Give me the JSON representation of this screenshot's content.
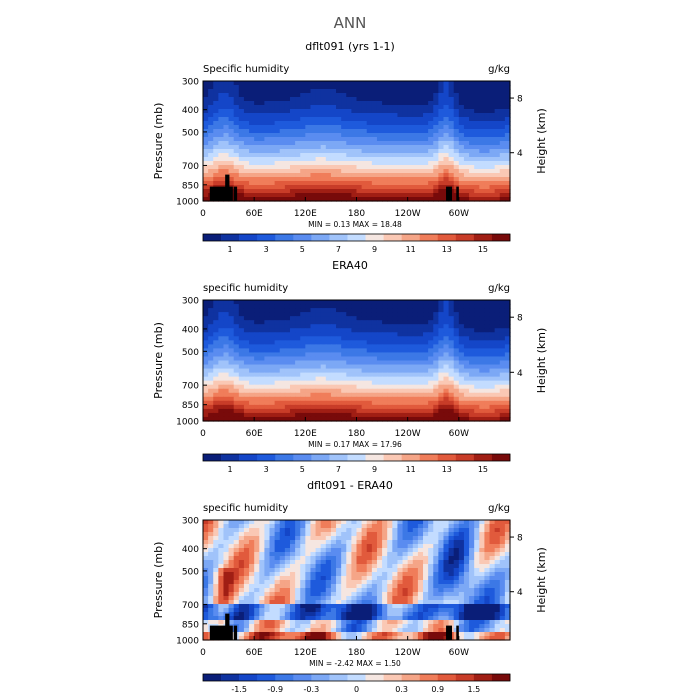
{
  "figure": {
    "title": "ANN"
  },
  "colors": {
    "full_scale": [
      "#0a1e78",
      "#0f32a0",
      "#1446c8",
      "#1e5adc",
      "#3c78e6",
      "#5a8cf0",
      "#7ca8f5",
      "#a0c3fa",
      "#c3dcff",
      "#f5e6e1",
      "#fac8b4",
      "#f5a587",
      "#f07d5a",
      "#e15a3c",
      "#c83c28",
      "#a01e14",
      "#780a0a"
    ],
    "diff_scale": [
      "#0a1e78",
      "#0f32a0",
      "#1446c8",
      "#1e5adc",
      "#3c78e6",
      "#5a8cf0",
      "#7ca8f5",
      "#a0c3fa",
      "#c3dcff",
      "#f5e6e1",
      "#fac8b4",
      "#f5a587",
      "#f07d5a",
      "#e15a3c",
      "#c83c28",
      "#a01e14",
      "#780a0a"
    ],
    "topography": "#000000"
  },
  "chart_data": [
    {
      "type": "heatmap",
      "title": "dflt091 (yrs 1-1)",
      "left_label": "Specific humidity",
      "right_label": "g/kg",
      "ylabel": "Pressure (mb)",
      "ylabel_right": "Height (km)",
      "y_ticks": [
        "300",
        "400",
        "500",
        "700",
        "850",
        "1000"
      ],
      "y_right_ticks": [
        "8",
        "4"
      ],
      "x_ticks": [
        "0",
        "60E",
        "120E",
        "180",
        "120W",
        "60W"
      ],
      "stats": "MIN =    0.13   MAX =   18.48",
      "colorbar_labels": [
        "1",
        "3",
        "5",
        "7",
        "9",
        "11",
        "13",
        "15"
      ],
      "has_topography": true
    },
    {
      "type": "heatmap",
      "title": "ERA40",
      "left_label": "specific humidity",
      "right_label": "g/kg",
      "ylabel": "Pressure (mb)",
      "ylabel_right": "Height (km)",
      "y_ticks": [
        "300",
        "400",
        "500",
        "700",
        "850",
        "1000"
      ],
      "y_right_ticks": [
        "8",
        "4"
      ],
      "x_ticks": [
        "0",
        "60E",
        "120E",
        "180",
        "120W",
        "60W"
      ],
      "stats": "MIN =    0.17   MAX =   17.96",
      "colorbar_labels": [
        "1",
        "3",
        "5",
        "7",
        "9",
        "11",
        "13",
        "15"
      ],
      "has_topography": false
    },
    {
      "type": "heatmap",
      "title": "dflt091 - ERA40",
      "left_label": "specific humidity",
      "right_label": "g/kg",
      "ylabel": "Pressure (mb)",
      "ylabel_right": "Height (km)",
      "y_ticks": [
        "300",
        "400",
        "500",
        "700",
        "850",
        "1000"
      ],
      "y_right_ticks": [
        "8",
        "4"
      ],
      "x_ticks": [
        "0",
        "60E",
        "120E",
        "180",
        "120W",
        "60W"
      ],
      "stats": "MIN =  -2.42   MAX =    1.50",
      "colorbar_labels": [
        "-1.5",
        "-0.9",
        "-0.3",
        "0",
        "0.3",
        "0.9",
        "1.5"
      ],
      "has_topography": true
    }
  ]
}
